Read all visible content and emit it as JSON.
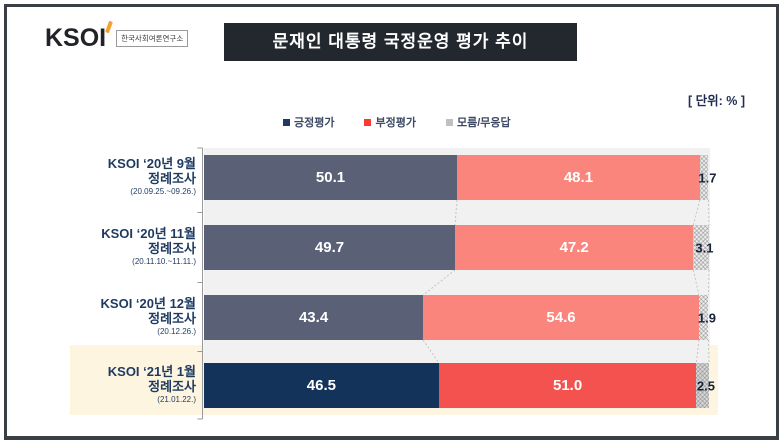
{
  "brand": {
    "logo_text": "KSOI",
    "logo_sub": "한국사회여론연구소"
  },
  "header": {
    "title": "문재인 대통령 국정운영 평가 추이",
    "unit_label": "[ 단위: % ]"
  },
  "legend": {
    "items": [
      {
        "label": "긍정평가",
        "marker_color": "#1f3864"
      },
      {
        "label": "부정평가",
        "marker_color": "#fb3b30"
      },
      {
        "label": "모름/무응답",
        "marker_color": "#c0c0c0"
      }
    ]
  },
  "chart_data": {
    "type": "bar",
    "variant": "horizontal_stacked",
    "title": "문재인 대통령 국정운영 평가 추이",
    "unit": "%",
    "xlim": [
      0,
      100
    ],
    "legend_position": "top-center",
    "value_labels": "inside",
    "series": [
      {
        "name": "긍정평가",
        "color_default": "#5a6177",
        "color_highlight": "#14335b",
        "values": [
          50.1,
          49.7,
          43.4,
          46.5
        ]
      },
      {
        "name": "부정평가",
        "color_default": "#f9857d",
        "color_highlight": "#f4524e",
        "values": [
          48.1,
          47.2,
          54.6,
          51.0
        ]
      },
      {
        "name": "모름/무응답",
        "color_default": "#ececec",
        "color_highlight": "#d7d7d7",
        "values": [
          1.7,
          3.1,
          1.9,
          2.5
        ]
      }
    ],
    "categories": [
      {
        "survey": "KSOI ‘20년 9월",
        "round": "정례조사",
        "period": "(20.09.25.~09.26.)",
        "highlight": false
      },
      {
        "survey": "KSOI ‘20년 11월",
        "round": "정례조사",
        "period": "(20.11.10.~11.11.)",
        "highlight": false
      },
      {
        "survey": "KSOI ‘20년 12월",
        "round": "정례조사",
        "period": "(20.12.26.)",
        "highlight": false
      },
      {
        "survey": "KSOI ‘21년 1월",
        "round": "정례조사",
        "period": "(21.01.22.)",
        "highlight": true
      }
    ]
  }
}
